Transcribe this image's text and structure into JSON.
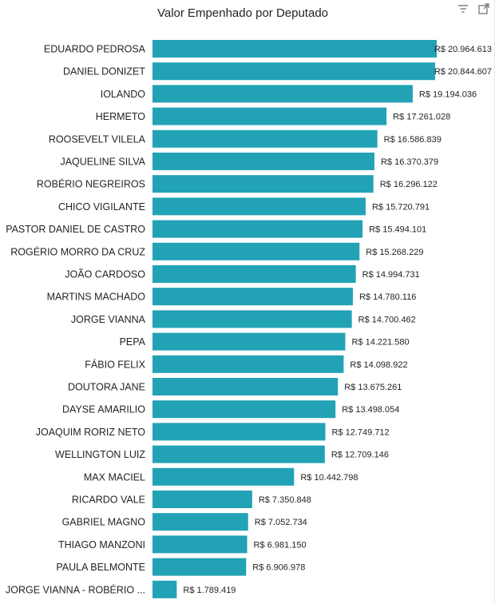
{
  "visual": {
    "title": "Valor Empenhado por Deputado",
    "icons": [
      "filter-icon",
      "focus-mode-icon"
    ]
  },
  "colors": {
    "bar": "#21a2b5",
    "text": "#252423"
  },
  "chart_data": {
    "type": "bar",
    "orientation": "horizontal",
    "title": "Valor Empenhado por Deputado",
    "xlabel": "",
    "ylabel": "",
    "categories": [
      "EDUARDO PEDROSA",
      "DANIEL DONIZET",
      "IOLANDO",
      "HERMETO",
      "ROOSEVELT VILELA",
      "JAQUELINE SILVA",
      "ROBÉRIO NEGREIROS",
      "CHICO VIGILANTE",
      "PASTOR DANIEL DE CASTRO",
      "ROGÉRIO MORRO DA CRUZ",
      "JOÃO CARDOSO",
      "MARTINS MACHADO",
      "JORGE VIANNA",
      "PEPA",
      "FÁBIO FELIX",
      "DOUTORA JANE",
      "DAYSE AMARILIO",
      "JOAQUIM RORIZ NETO",
      "WELLINGTON LUIZ",
      "MAX MACIEL",
      "RICARDO VALE",
      "GABRIEL MAGNO",
      "THIAGO MANZONI",
      "PAULA BELMONTE",
      "JORGE VIANNA - ROBÉRIO ..."
    ],
    "values": [
      20964613,
      20844607,
      19194036,
      17261028,
      16586839,
      16370379,
      16296122,
      15720791,
      15494101,
      15268229,
      14994731,
      14780116,
      14700462,
      14221580,
      14098922,
      13675261,
      13498054,
      12749712,
      12709146,
      10442798,
      7350848,
      7052734,
      6981150,
      6906978,
      1789419
    ],
    "labels": [
      "R$ 20.964.613",
      "R$ 20.844.607",
      "R$ 19.194.036",
      "R$ 17.261.028",
      "R$ 16.586.839",
      "R$ 16.370.379",
      "R$ 16.296.122",
      "R$ 15.720.791",
      "R$ 15.494.101",
      "R$ 15.268.229",
      "R$ 14.994.731",
      "R$ 14.780.116",
      "R$ 14.700.462",
      "R$ 14.221.580",
      "R$ 14.098.922",
      "R$ 13.675.261",
      "R$ 13.498.054",
      "R$ 12.749.712",
      "R$ 12.709.146",
      "R$ 10.442.798",
      "R$ 7.350.848",
      "R$ 7.052.734",
      "R$ 6.981.150",
      "R$ 6.906.978",
      "R$ 1.789.419"
    ],
    "xlim": [
      0,
      20964613
    ],
    "grid": false,
    "legend": "none"
  }
}
